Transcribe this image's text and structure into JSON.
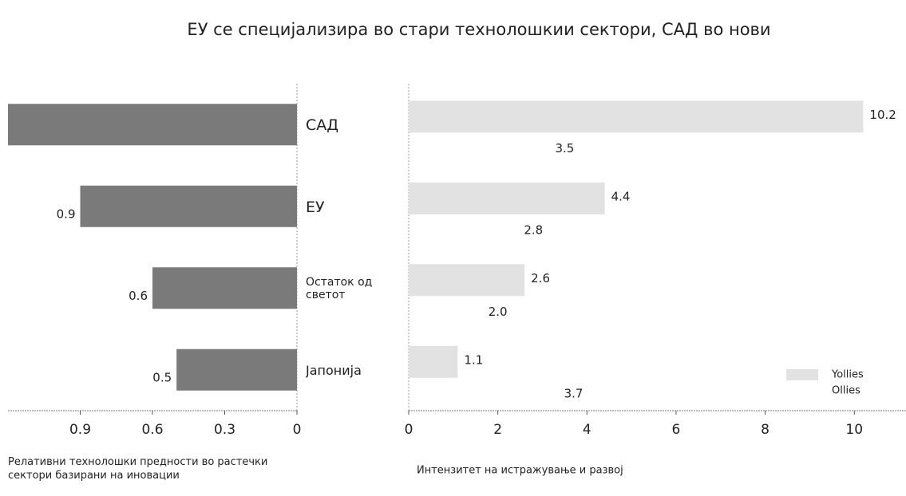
{
  "chart_data": [
    {
      "type": "bar",
      "orientation": "horizontal",
      "title": "ЕУ се специјализира во стари технолошкии сектори, САД во нови",
      "x_label": "Релативни технолошки предности во растечки сектори базирани на иновации",
      "categories": [
        "САД",
        "ЕУ",
        "Остаток од светот",
        "Јапонија"
      ],
      "values": [
        1.2,
        0.9,
        0.6,
        0.5
      ],
      "value_labels": [
        null,
        "0.9",
        "0.6",
        "0.5"
      ],
      "color": "#7a7a7a",
      "xlim": [
        1.2,
        0
      ],
      "xticks": [
        0.9,
        0.6,
        0.3,
        0
      ]
    },
    {
      "type": "bar",
      "orientation": "horizontal",
      "x_label": "Интензитет на истражување и развој",
      "series": [
        {
          "name": "Yollies",
          "color": "#e2e2e2",
          "values": [
            10.2,
            4.4,
            2.6,
            1.1
          ]
        },
        {
          "name": "Ollies",
          "values": [
            3.5,
            2.8,
            2.0,
            3.7
          ],
          "value_labels": [
            "3.5",
            "2.8",
            "2.0",
            "3.7"
          ]
        }
      ],
      "xlim": [
        0,
        11.16
      ],
      "xticks": [
        0,
        2,
        4,
        6,
        8,
        10
      ],
      "legend": "lower right"
    }
  ]
}
